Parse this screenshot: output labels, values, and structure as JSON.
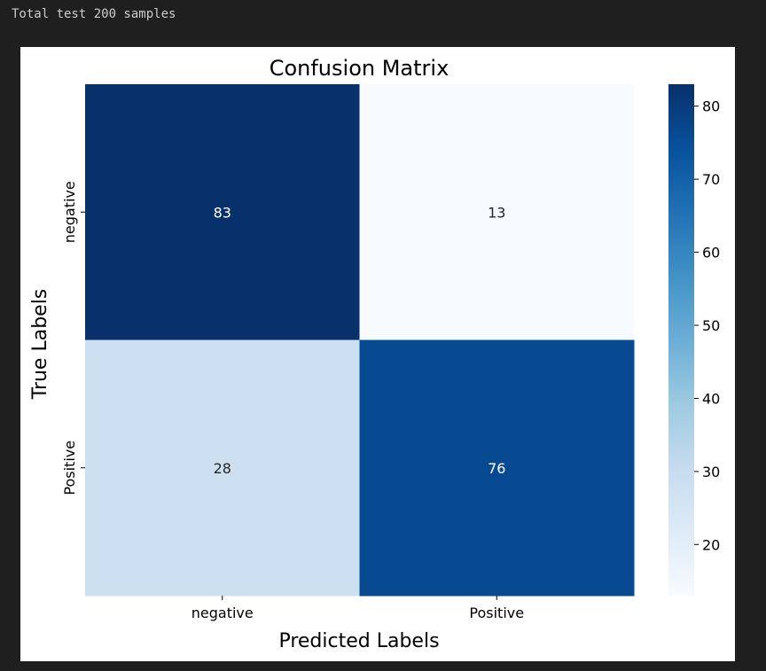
{
  "output": {
    "text": "Total test 200 samples"
  },
  "chart_data": {
    "type": "heatmap",
    "title": "Confusion Matrix",
    "xlabel": "Predicted Labels",
    "ylabel": "True Labels",
    "x_categories": [
      "negative",
      "Positive"
    ],
    "y_categories": [
      "negative",
      "Positive"
    ],
    "values": [
      [
        83,
        13
      ],
      [
        28,
        76
      ]
    ],
    "colormap": "Blues",
    "colorbar": {
      "min": 13,
      "max": 83,
      "ticks": [
        20,
        30,
        40,
        50,
        60,
        70,
        80
      ]
    },
    "colors": {
      "cell_83": "#08306b",
      "cell_13": "#f7fbff",
      "cell_28": "#cadeef",
      "cell_76": "#084a92"
    }
  }
}
